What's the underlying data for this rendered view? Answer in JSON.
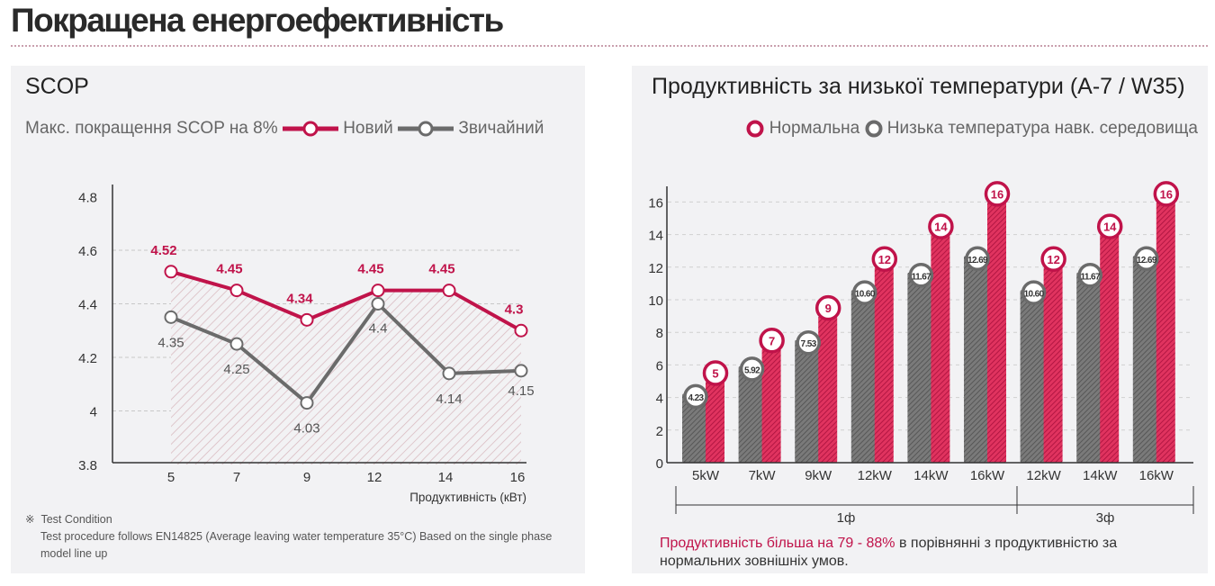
{
  "page_title": "Покращена енергоефективність",
  "chart_data": [
    {
      "type": "line",
      "title": "SCOP",
      "subtitle": "Макс. покращення SCOP на 8%",
      "xlabel": "Продуктивність (кВт)",
      "ylabel": "",
      "categories": [
        "5",
        "7",
        "9",
        "12",
        "14",
        "16"
      ],
      "yticks": [
        "3.8",
        "4",
        "4.2",
        "4.4",
        "4.6",
        "4.8"
      ],
      "ylim": [
        3.8,
        4.8
      ],
      "grid": true,
      "series": [
        {
          "name": "Новий",
          "color": "#c0134a",
          "values": [
            4.52,
            4.45,
            4.34,
            4.45,
            4.45,
            4.3
          ]
        },
        {
          "name": "Звичайний",
          "color": "#6b6b6b",
          "values": [
            4.35,
            4.25,
            4.03,
            4.4,
            4.14,
            4.15
          ]
        }
      ]
    },
    {
      "type": "bar",
      "title": "Продуктивність за низької температури  (A-7 / W35)",
      "xlabel": "",
      "ylabel": "",
      "categories": [
        "5kW",
        "7kW",
        "9kW",
        "12kW",
        "14kW",
        "16kW",
        "12kW",
        "14kW",
        "16kW"
      ],
      "groups": [
        {
          "label": "1ф",
          "count": 6
        },
        {
          "label": "3ф",
          "count": 3
        }
      ],
      "yticks": [
        "0",
        "2",
        "4",
        "6",
        "8",
        "10",
        "12",
        "14",
        "16"
      ],
      "ylim": [
        0,
        17
      ],
      "grid": true,
      "legend": "top-right",
      "series": [
        {
          "name": "Низька температура навк. середовища",
          "color": "#6b6b6b",
          "values": [
            4.23,
            5.92,
            7.53,
            10.6,
            11.67,
            12.69,
            10.6,
            11.67,
            12.69
          ],
          "labels": [
            "4.23",
            "5.92",
            "7.53",
            "10.60",
            "11.67",
            "12.69",
            "10.60",
            "11.67",
            "12.69"
          ]
        },
        {
          "name": "Нормальна",
          "color": "#c0134a",
          "values": [
            5,
            7,
            9,
            12,
            14,
            16,
            12,
            14,
            16
          ],
          "labels": [
            "5",
            "7",
            "9",
            "12",
            "14",
            "16",
            "12",
            "14",
            "16"
          ]
        }
      ]
    }
  ],
  "note": {
    "mark": "※",
    "head": "Test Condition",
    "body": "Test procedure follows EN14825 (Average leaving water temperature 35°C) Based on the single phase model line up"
  },
  "footer": {
    "highlight": "Продуктивність більша на 79 - 88%",
    "rest": " в порівнянні з продуктивністю за нормальних зовнішніх умов."
  }
}
